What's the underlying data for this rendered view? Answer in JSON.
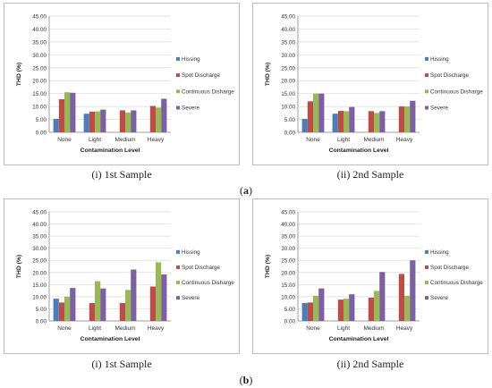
{
  "colors": {
    "Hissing": "#4a7ebb",
    "Spot Discharge": "#be4b48",
    "Continuous Disharge": "#98b954",
    "Severe": "#7d60a0"
  },
  "panels": [
    {
      "id": "a1",
      "caption": "(i) 1st Sample"
    },
    {
      "id": "a2",
      "caption": "(ii) 2nd Sample"
    },
    {
      "id": "b1",
      "caption": "(i) 1st Sample"
    },
    {
      "id": "b2",
      "caption": "(ii) 2nd Sample"
    }
  ],
  "row_labels": {
    "a_open": "(",
    "a_letter": "a",
    "a_close": ")",
    "b_open": "(",
    "b_letter": "b",
    "b_close": ")"
  },
  "chart_data": [
    {
      "type": "bar",
      "title": "",
      "xlabel": "Contamination Level",
      "ylabel": "THD (%)",
      "ylim": [
        0,
        45
      ],
      "yticks": [
        "0.00",
        "5.00",
        "10.00",
        "15.00",
        "20.00",
        "25.00",
        "30.00",
        "35.00",
        "40.00",
        "45.00"
      ],
      "categories": [
        "None",
        "Light",
        "Medium",
        "Heavy"
      ],
      "legend_position": "right",
      "grid": true,
      "series": [
        {
          "name": "Hissing",
          "values": [
            5.2,
            7.2,
            0,
            0
          ]
        },
        {
          "name": "Spot Discharge",
          "values": [
            12.8,
            8.0,
            8.5,
            10.2
          ]
        },
        {
          "name": "Continuous Disharge",
          "values": [
            15.5,
            8.1,
            7.6,
            9.6
          ]
        },
        {
          "name": "Severe",
          "values": [
            15.3,
            8.8,
            8.5,
            13.0
          ]
        }
      ]
    },
    {
      "type": "bar",
      "title": "",
      "xlabel": "Contamination Level",
      "ylabel": "THD (%)",
      "ylim": [
        0,
        45
      ],
      "yticks": [
        "0.00",
        "5.00",
        "10.00",
        "15.00",
        "20.00",
        "25.00",
        "30.00",
        "35.00",
        "40.00",
        "45.00"
      ],
      "categories": [
        "None",
        "Light",
        "Medium",
        "Heavy"
      ],
      "legend_position": "right",
      "grid": true,
      "series": [
        {
          "name": "Hissing",
          "values": [
            5.2,
            7.2,
            0,
            0
          ]
        },
        {
          "name": "Spot Discharge",
          "values": [
            12.0,
            8.3,
            8.2,
            10.0
          ]
        },
        {
          "name": "Continuous Disharge",
          "values": [
            15.0,
            8.2,
            7.5,
            10.0
          ]
        },
        {
          "name": "Severe",
          "values": [
            15.0,
            9.8,
            8.2,
            12.2
          ]
        }
      ]
    },
    {
      "type": "bar",
      "title": "",
      "xlabel": "Contamination Level",
      "ylabel": "THD (%)",
      "ylim": [
        0,
        45
      ],
      "yticks": [
        "0.00",
        "5.00",
        "10.00",
        "15.00",
        "20.00",
        "25.00",
        "30.00",
        "35.00",
        "40.00",
        "45.00"
      ],
      "categories": [
        "None",
        "Light",
        "Medium",
        "Heavy"
      ],
      "legend_position": "right",
      "grid": true,
      "series": [
        {
          "name": "Hissing",
          "values": [
            9.2,
            0,
            0,
            0
          ]
        },
        {
          "name": "Spot Discharge",
          "values": [
            7.6,
            7.4,
            7.4,
            14.2
          ]
        },
        {
          "name": "Continuous Disharge",
          "values": [
            10.0,
            16.4,
            12.8,
            24.2
          ]
        },
        {
          "name": "Severe",
          "values": [
            13.6,
            13.4,
            21.2,
            19.2
          ]
        }
      ]
    },
    {
      "type": "bar",
      "title": "",
      "xlabel": "Contamination Level",
      "ylabel": "THD (%)",
      "ylim": [
        0,
        45
      ],
      "yticks": [
        "0.00",
        "5.00",
        "10.00",
        "15.00",
        "20.00",
        "25.00",
        "30.00",
        "35.00",
        "40.00",
        "45.00"
      ],
      "categories": [
        "None",
        "Light",
        "Medium",
        "Heavy"
      ],
      "legend_position": "right",
      "grid": true,
      "series": [
        {
          "name": "Hissing",
          "values": [
            7.4,
            0,
            0,
            0
          ]
        },
        {
          "name": "Spot Discharge",
          "values": [
            7.6,
            8.8,
            9.6,
            19.4
          ]
        },
        {
          "name": "Continuous Disharge",
          "values": [
            10.4,
            9.2,
            12.4,
            10.4
          ]
        },
        {
          "name": "Severe",
          "values": [
            13.4,
            11.0,
            20.2,
            25.0
          ]
        }
      ]
    }
  ]
}
